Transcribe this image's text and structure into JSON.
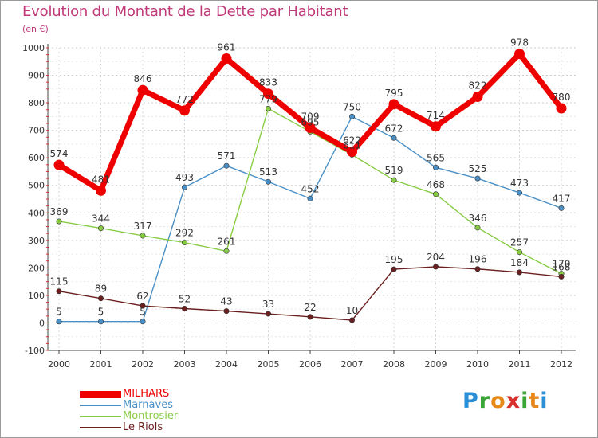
{
  "title": "Evolution du Montant de la Dette par Habitant",
  "unit": "(en €)",
  "logo": {
    "letters": [
      "P",
      "r",
      "o",
      "x",
      "i",
      "t",
      "i"
    ],
    "colors": [
      "#2a8fd6",
      "#3aa635",
      "#e88a1a",
      "#d8302a",
      "#3aa635",
      "#e88a1a",
      "#2a8fd6"
    ]
  },
  "chart_data": {
    "type": "line",
    "x": [
      "2000",
      "2001",
      "2002",
      "2003",
      "2004",
      "2005",
      "2006",
      "2007",
      "2008",
      "2009",
      "2010",
      "2011",
      "2012"
    ],
    "ylim": [
      -100,
      1000
    ],
    "yticks": [
      -100,
      0,
      100,
      200,
      300,
      400,
      500,
      600,
      700,
      800,
      900,
      1000
    ],
    "grid": true,
    "legend_position": "bottom-left",
    "series": [
      {
        "name": "MILHARS",
        "color": "#ee0000",
        "values": [
          574,
          481,
          846,
          772,
          961,
          833,
          709,
          622,
          795,
          714,
          822,
          978,
          780
        ],
        "labels": [
          "574",
          "481",
          "846",
          "772",
          "961",
          "833",
          "709",
          "622",
          "795",
          "714",
          "822",
          "978",
          "780"
        ]
      },
      {
        "name": "Marnaves",
        "color": "#4a90c6",
        "values": [
          5,
          5,
          5,
          493,
          571,
          513,
          452,
          750,
          672,
          565,
          525,
          473,
          417
        ],
        "labels": [
          "5",
          "5",
          "5",
          "493",
          "571",
          "513",
          "452",
          "750",
          "672",
          "565",
          "525",
          "473",
          "417"
        ]
      },
      {
        "name": "Montrosier",
        "color": "#88cc44",
        "values": [
          369,
          344,
          317,
          292,
          261,
          779,
          695,
          611,
          519,
          468,
          346,
          257,
          179
        ],
        "labels": [
          "369",
          "344",
          "317",
          "292",
          "261",
          "779",
          "695",
          "611",
          "519",
          "468",
          "346",
          "257",
          "179"
        ]
      },
      {
        "name": "Le Riols",
        "color": "#6b1f1f",
        "values": [
          115,
          89,
          62,
          52,
          43,
          33,
          22,
          10,
          195,
          204,
          196,
          184,
          168
        ],
        "labels": [
          "115",
          "89",
          "62",
          "52",
          "43",
          "33",
          "22",
          "10",
          "195",
          "204",
          "196",
          "184",
          "168"
        ]
      }
    ]
  }
}
